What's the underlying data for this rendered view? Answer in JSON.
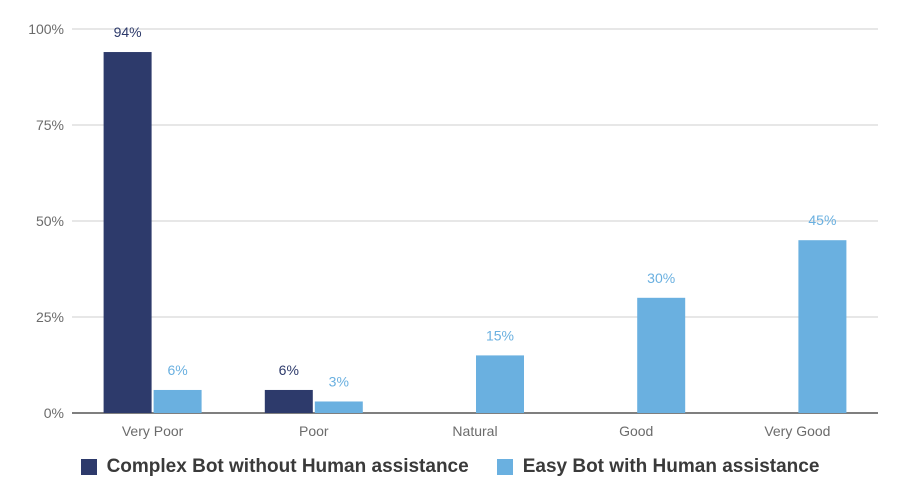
{
  "chart_data": {
    "type": "bar",
    "categories": [
      "Very Poor",
      "Poor",
      "Natural",
      "Good",
      "Very Good"
    ],
    "series": [
      {
        "name": "Complex Bot without Human assistance",
        "color": "#2d3a6b",
        "values": [
          94,
          6,
          null,
          null,
          null
        ],
        "labels": [
          "94%",
          "6%",
          "",
          "",
          ""
        ]
      },
      {
        "name": "Easy Bot with Human assistance",
        "color": "#6ab0e0",
        "values": [
          6,
          3,
          15,
          30,
          45
        ],
        "labels": [
          "6%",
          "3%",
          "15%",
          "30%",
          "45%"
        ]
      }
    ],
    "y_ticks": [
      "0%",
      "25%",
      "50%",
      "75%",
      "100%"
    ],
    "ylim": [
      0,
      100
    ],
    "grid": true,
    "legend_position": "bottom"
  }
}
